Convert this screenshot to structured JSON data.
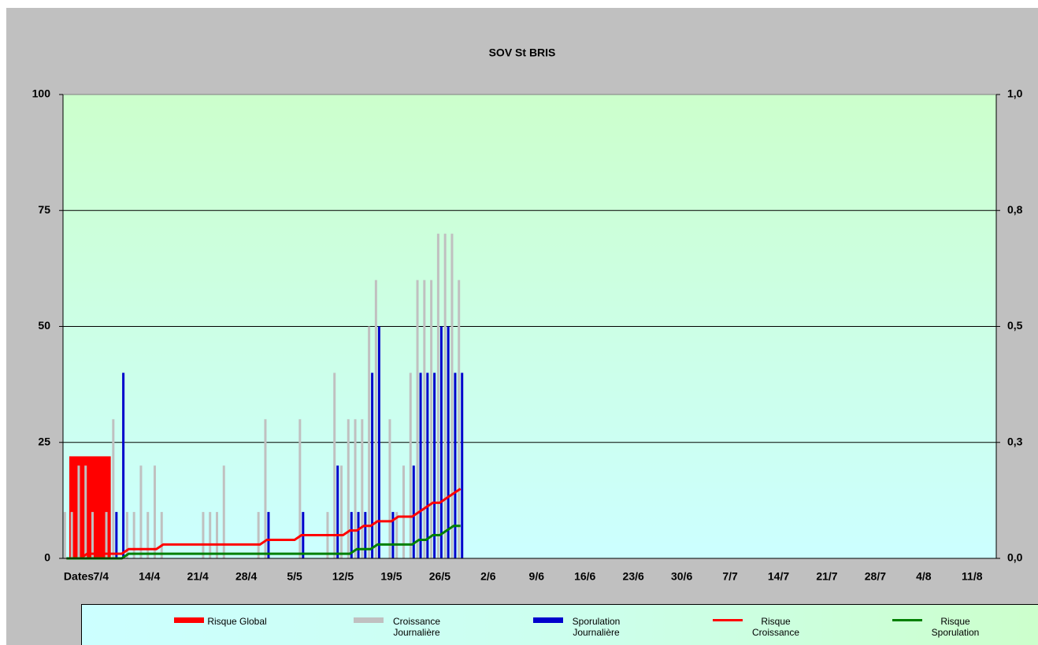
{
  "chart_data": {
    "type": "bar",
    "title": "SOV  St BRIS",
    "x_label": "Dates",
    "categories": [
      null,
      null,
      null,
      null,
      null,
      "7/4",
      null,
      null,
      null,
      null,
      null,
      null,
      "14/4",
      null,
      null,
      null,
      null,
      null,
      null,
      "21/4",
      null,
      null,
      null,
      null,
      null,
      null,
      "28/4",
      null,
      null,
      null,
      null,
      null,
      null,
      "5/5",
      null,
      null,
      null,
      null,
      null,
      null,
      "12/5",
      null,
      null,
      null,
      null,
      null,
      null,
      "19/5",
      null,
      null,
      null,
      null,
      null,
      null,
      "26/5",
      null,
      null,
      null,
      null,
      null,
      null,
      "2/6",
      null,
      null,
      null,
      null,
      null,
      null,
      "9/6",
      null,
      null,
      null,
      null,
      null,
      null,
      "16/6",
      null,
      null,
      null,
      null,
      null,
      null,
      "23/6",
      null,
      null,
      null,
      null,
      null,
      null,
      "30/6",
      null,
      null,
      null,
      null,
      null,
      null,
      "7/7",
      null,
      null,
      null,
      null,
      null,
      null,
      "14/7",
      null,
      null,
      null,
      null,
      null,
      null,
      "21/7",
      null,
      null,
      null,
      null,
      null,
      null,
      "28/7",
      null,
      null,
      null,
      null,
      null,
      null,
      "4/8",
      null,
      null,
      null,
      null,
      null,
      null,
      "11/8",
      null,
      null,
      null
    ],
    "global_risk": {
      "name": "Risque Global",
      "color": "#ff0000",
      "value": 22
    },
    "series": [
      {
        "name": "Croissance Journalière",
        "color": "#c0c0c0",
        "kind": "bar",
        "values": [
          10,
          10,
          20,
          20,
          10,
          0,
          10,
          30,
          0,
          10,
          10,
          20,
          10,
          20,
          10,
          0,
          0,
          0,
          0,
          0,
          10,
          10,
          10,
          20,
          0,
          0,
          0,
          0,
          10,
          30,
          0,
          0,
          0,
          0,
          30,
          0,
          0,
          0,
          10,
          40,
          20,
          30,
          30,
          30,
          50,
          60,
          0,
          30,
          10,
          20,
          40,
          60,
          60,
          60,
          70,
          70,
          70,
          60,
          null,
          null,
          null,
          null,
          null,
          null,
          null,
          null,
          null,
          null,
          null,
          null,
          null,
          null,
          null,
          null,
          null,
          null,
          null,
          null,
          null,
          null,
          null,
          null,
          null,
          null,
          null,
          null,
          null,
          null,
          null,
          null,
          null,
          null,
          null,
          null,
          null,
          null,
          null,
          null,
          null,
          null,
          null,
          null,
          null,
          null,
          null,
          null,
          null,
          null,
          null,
          null,
          null,
          null,
          null,
          null,
          null,
          null,
          null,
          null,
          null,
          null,
          null,
          null,
          null,
          null,
          null,
          null,
          null,
          null,
          null,
          null,
          null,
          null,
          null,
          null,
          null
        ]
      },
      {
        "name": "Sporulation Journalière",
        "color": "#0000cc",
        "kind": "bar",
        "values": [
          0,
          0,
          0,
          0,
          0,
          0,
          0,
          10,
          40,
          0,
          0,
          0,
          0,
          0,
          0,
          0,
          0,
          0,
          0,
          0,
          0,
          0,
          0,
          0,
          0,
          0,
          0,
          0,
          0,
          10,
          0,
          0,
          0,
          0,
          10,
          0,
          0,
          0,
          0,
          20,
          0,
          10,
          10,
          10,
          40,
          50,
          0,
          10,
          0,
          0,
          20,
          40,
          40,
          40,
          50,
          50,
          40,
          40,
          null,
          null,
          null,
          null,
          null,
          null,
          null,
          null,
          null,
          null,
          null,
          null,
          null,
          null,
          null,
          null,
          null,
          null,
          null,
          null,
          null,
          null,
          null,
          null,
          null,
          null,
          null,
          null,
          null,
          null,
          null,
          null,
          null,
          null,
          null,
          null,
          null,
          null,
          null,
          null,
          null,
          null,
          null,
          null,
          null,
          null,
          null,
          null,
          null,
          null,
          null,
          null,
          null,
          null,
          null,
          null,
          null,
          null,
          null,
          null,
          null,
          null,
          null,
          null,
          null,
          null,
          null,
          null,
          null,
          null,
          null,
          null,
          null,
          null,
          null,
          null,
          null
        ]
      },
      {
        "name": "Risque Croissance",
        "color": "#ff0000",
        "kind": "line",
        "axis": "y2",
        "values": [
          0,
          0,
          0,
          0.01,
          0.01,
          0.01,
          0.01,
          0.01,
          0.01,
          0.02,
          0.02,
          0.02,
          0.02,
          0.02,
          0.03,
          0.03,
          0.03,
          0.03,
          0.03,
          0.03,
          0.03,
          0.03,
          0.03,
          0.03,
          0.03,
          0.03,
          0.03,
          0.03,
          0.03,
          0.04,
          0.04,
          0.04,
          0.04,
          0.04,
          0.05,
          0.05,
          0.05,
          0.05,
          0.05,
          0.05,
          0.05,
          0.06,
          0.06,
          0.07,
          0.07,
          0.08,
          0.08,
          0.08,
          0.09,
          0.09,
          0.09,
          0.1,
          0.11,
          0.12,
          0.12,
          0.13,
          0.14,
          0.15,
          null,
          null,
          null,
          null,
          null,
          null,
          null,
          null,
          null,
          null,
          null,
          null,
          null,
          null,
          null,
          null,
          null,
          null,
          null,
          null,
          null,
          null,
          null,
          null,
          null,
          null,
          null,
          null,
          null,
          null,
          null,
          null,
          null,
          null,
          null,
          null,
          null,
          null,
          null,
          null,
          null,
          null,
          null,
          null,
          null,
          null,
          null,
          null,
          null,
          null,
          null,
          null,
          null,
          null,
          null,
          null,
          null,
          null,
          null,
          null,
          null,
          null,
          null,
          null,
          null,
          null,
          null,
          null,
          null,
          null,
          null,
          null,
          null,
          null,
          null,
          null,
          null
        ]
      },
      {
        "name": "Risque Sporulation",
        "color": "#008000",
        "kind": "line",
        "axis": "y2",
        "values": [
          0,
          0,
          0,
          0,
          0,
          0,
          0,
          0,
          0,
          0.01,
          0.01,
          0.01,
          0.01,
          0.01,
          0.01,
          0.01,
          0.01,
          0.01,
          0.01,
          0.01,
          0.01,
          0.01,
          0.01,
          0.01,
          0.01,
          0.01,
          0.01,
          0.01,
          0.01,
          0.01,
          0.01,
          0.01,
          0.01,
          0.01,
          0.01,
          0.01,
          0.01,
          0.01,
          0.01,
          0.01,
          0.01,
          0.01,
          0.02,
          0.02,
          0.02,
          0.03,
          0.03,
          0.03,
          0.03,
          0.03,
          0.03,
          0.04,
          0.04,
          0.05,
          0.05,
          0.06,
          0.07,
          0.07,
          null,
          null,
          null,
          null,
          null,
          null,
          null,
          null,
          null,
          null,
          null,
          null,
          null,
          null,
          null,
          null,
          null,
          null,
          null,
          null,
          null,
          null,
          null,
          null,
          null,
          null,
          null,
          null,
          null,
          null,
          null,
          null,
          null,
          null,
          null,
          null,
          null,
          null,
          null,
          null,
          null,
          null,
          null,
          null,
          null,
          null,
          null,
          null,
          null,
          null,
          null,
          null,
          null,
          null,
          null,
          null,
          null,
          null,
          null,
          null,
          null,
          null,
          null,
          null,
          null,
          null,
          null,
          null,
          null,
          null,
          null,
          null,
          null,
          null,
          null,
          null,
          null
        ]
      }
    ],
    "ylim": [
      0,
      100
    ],
    "yticks": [
      0,
      25,
      50,
      75,
      100
    ],
    "y2lim": [
      0,
      1
    ],
    "y2ticks": [
      {
        "value": 0,
        "label": "0,0"
      },
      {
        "value": 0.25,
        "label": "0,3"
      },
      {
        "value": 0.5,
        "label": "0,5"
      },
      {
        "value": 0.75,
        "label": "0,8"
      },
      {
        "value": 1,
        "label": "1,0"
      }
    ],
    "grid": true
  }
}
